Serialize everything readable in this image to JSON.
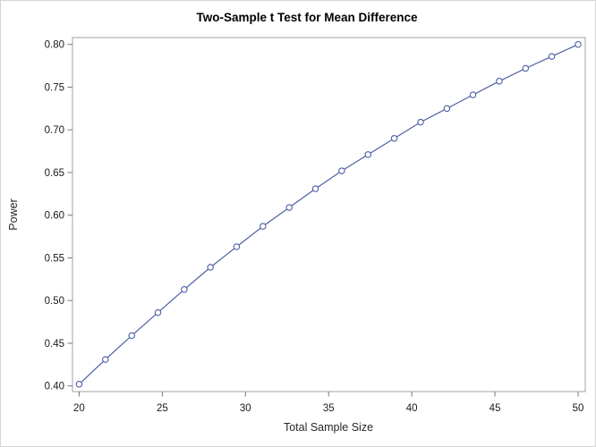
{
  "chart_data": {
    "type": "line",
    "title": "Two-Sample t Test for Mean Difference",
    "xlabel": "Total Sample Size",
    "ylabel": "Power",
    "x": [
      20,
      21.58,
      23.16,
      24.74,
      26.32,
      27.89,
      29.47,
      31.05,
      32.63,
      34.21,
      35.79,
      37.37,
      38.95,
      40.53,
      42.11,
      43.68,
      45.26,
      46.84,
      48.42,
      50
    ],
    "series": [
      {
        "name": "Power",
        "values": [
          0.402,
          0.431,
          0.459,
          0.486,
          0.513,
          0.539,
          0.563,
          0.587,
          0.609,
          0.631,
          0.652,
          0.671,
          0.69,
          0.709,
          0.725,
          0.741,
          0.757,
          0.772,
          0.786,
          0.8
        ]
      }
    ],
    "xticks": [
      20,
      25,
      30,
      35,
      40,
      45,
      50
    ],
    "xtick_labels": [
      "20",
      "25",
      "30",
      "35",
      "40",
      "45",
      "50"
    ],
    "yticks": [
      0.8,
      0.75,
      0.7,
      0.65,
      0.6,
      0.55,
      0.5,
      0.45,
      0.4
    ],
    "ytick_labels": [
      "0.80",
      "0.75",
      "0.70",
      "0.65",
      "0.60",
      "0.55",
      "0.50",
      "0.45",
      "0.40"
    ],
    "xlim": [
      19.6,
      50.43
    ],
    "ylim": [
      0.3934,
      0.8081
    ],
    "grid": false,
    "legend": "none",
    "marker": "open-circle",
    "colors": {
      "line": "#4C5FA3",
      "marker_fill": "#ffffff",
      "frame": "#a3a3a3",
      "tick": "#767676",
      "tick_text": "#1a1a1a",
      "label_text": "#262626",
      "title_text": "#000000",
      "figure_border": "#d4d4d4",
      "background": "#ffffff"
    }
  }
}
